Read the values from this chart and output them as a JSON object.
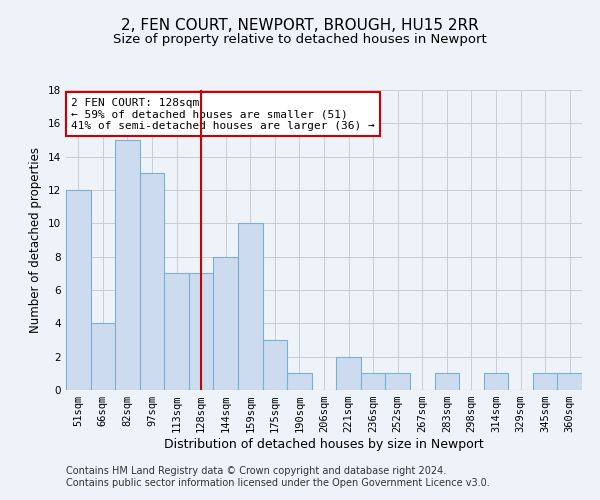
{
  "title": "2, FEN COURT, NEWPORT, BROUGH, HU15 2RR",
  "subtitle": "Size of property relative to detached houses in Newport",
  "xlabel": "Distribution of detached houses by size in Newport",
  "ylabel": "Number of detached properties",
  "categories": [
    "51sqm",
    "66sqm",
    "82sqm",
    "97sqm",
    "113sqm",
    "128sqm",
    "144sqm",
    "159sqm",
    "175sqm",
    "190sqm",
    "206sqm",
    "221sqm",
    "236sqm",
    "252sqm",
    "267sqm",
    "283sqm",
    "298sqm",
    "314sqm",
    "329sqm",
    "345sqm",
    "360sqm"
  ],
  "values": [
    12,
    4,
    15,
    13,
    7,
    7,
    8,
    10,
    3,
    1,
    0,
    2,
    1,
    1,
    0,
    1,
    0,
    1,
    0,
    1,
    1
  ],
  "bar_color": "#ccdcee",
  "bar_edge_color": "#7bafd4",
  "highlight_index": 5,
  "highlight_line_color": "#cc0000",
  "annotation_line1": "2 FEN COURT: 128sqm",
  "annotation_line2": "← 59% of detached houses are smaller (51)",
  "annotation_line3": "41% of semi-detached houses are larger (36) →",
  "annotation_box_color": "#ffffff",
  "annotation_box_edge_color": "#cc0000",
  "ylim": [
    0,
    18
  ],
  "yticks": [
    0,
    2,
    4,
    6,
    8,
    10,
    12,
    14,
    16,
    18
  ],
  "grid_color": "#cccccc",
  "background_color": "#eef2f9",
  "footer_line1": "Contains HM Land Registry data © Crown copyright and database right 2024.",
  "footer_line2": "Contains public sector information licensed under the Open Government Licence v3.0.",
  "title_fontsize": 11,
  "subtitle_fontsize": 9.5,
  "xlabel_fontsize": 9,
  "ylabel_fontsize": 8.5,
  "tick_fontsize": 7.5,
  "annotation_fontsize": 8,
  "footer_fontsize": 7
}
